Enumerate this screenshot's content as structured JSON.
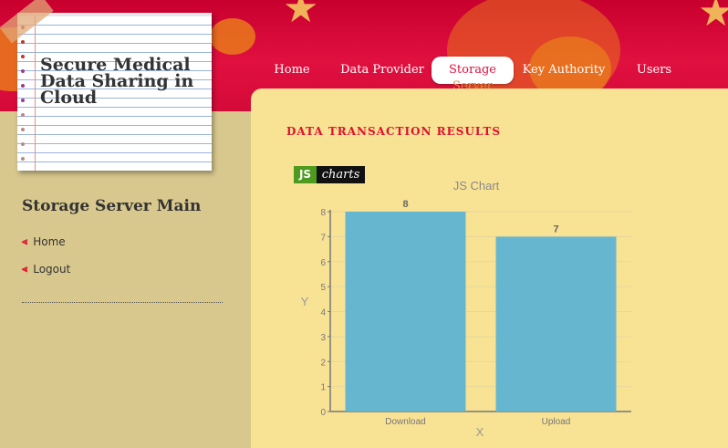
{
  "site": {
    "title": "Secure Medical Data Sharing in Cloud"
  },
  "nav": {
    "items": [
      {
        "label": "Home"
      },
      {
        "label": "Data Provider"
      },
      {
        "label": "Storage Server"
      },
      {
        "label": "Key Authority"
      },
      {
        "label": "Users"
      }
    ],
    "active_first": "Storage",
    "active_overflow": "Server"
  },
  "sidebar": {
    "heading": "Storage Server Main",
    "links": [
      {
        "label": "Home"
      },
      {
        "label": "Logout"
      }
    ]
  },
  "content": {
    "title": "DATA TRANSACTION RESULTS"
  },
  "logo": {
    "js": "JS",
    "charts": "charts"
  },
  "colors": {
    "bar": "#67b6d0",
    "accent": "#e0102f",
    "header": "#d40a38"
  },
  "chart_data": {
    "type": "bar",
    "title": "JS Chart",
    "xlabel": "X",
    "ylabel": "Y",
    "categories": [
      "Download",
      "Upload"
    ],
    "values": [
      8,
      7
    ],
    "ylim": [
      0,
      8
    ],
    "yticks": [
      0,
      1,
      2,
      3,
      4,
      5,
      6,
      7,
      8
    ],
    "grid": true
  }
}
